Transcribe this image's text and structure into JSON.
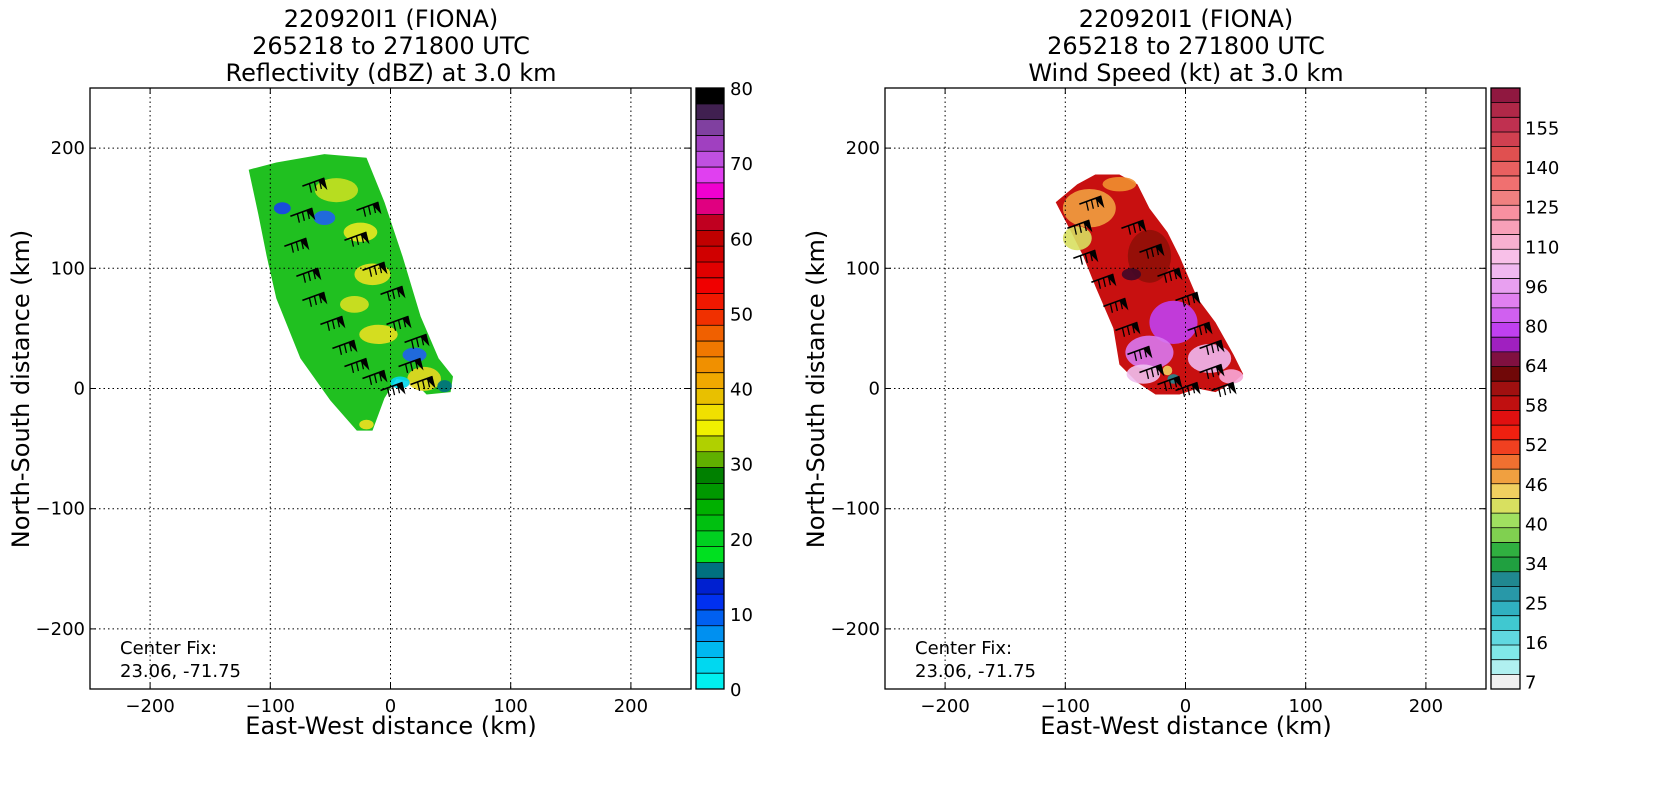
{
  "chart_data": [
    {
      "type": "heatmap",
      "title_lines": [
        "220920I1 (FIONA)",
        "265218 to 271800 UTC",
        "Reflectivity (dBZ) at 3.0 km"
      ],
      "xlabel": "East-West distance (km)",
      "ylabel": "North-South distance (km)",
      "xlim": [
        -250,
        250
      ],
      "ylim": [
        -250,
        250
      ],
      "xticks": [
        -200,
        -100,
        0,
        100,
        200
      ],
      "yticks": [
        -200,
        -100,
        0,
        100,
        200
      ],
      "grid": true,
      "annotation_lines": [
        "Center Fix:",
        "23.06, -71.75"
      ],
      "colorbar": {
        "min": 0,
        "max": 80,
        "tick_labels": [
          "0",
          "10",
          "20",
          "30",
          "40",
          "50",
          "60",
          "70",
          "80"
        ],
        "colors": [
          "#00f0f0",
          "#00d8f0",
          "#00b8f0",
          "#0090f0",
          "#0060f0",
          "#0030f0",
          "#0020d0",
          "#007080",
          "#00e020",
          "#00d020",
          "#00c010",
          "#00b000",
          "#009800",
          "#008000",
          "#60b000",
          "#b0d000",
          "#f0f000",
          "#f0e000",
          "#e8c000",
          "#f0a800",
          "#f09000",
          "#f07800",
          "#f06000",
          "#f03000",
          "#f01800",
          "#f00000",
          "#e00000",
          "#d00000",
          "#c00000",
          "#c00020",
          "#e00080",
          "#f000d0",
          "#e040f0",
          "#c050e0",
          "#a040c0",
          "#8040a0",
          "#402050",
          "#000000"
        ]
      },
      "storm_field": {
        "polygon_km": [
          [
            -118,
            182
          ],
          [
            -95,
            188
          ],
          [
            -55,
            195
          ],
          [
            -20,
            192
          ],
          [
            -5,
            155
          ],
          [
            10,
            110
          ],
          [
            25,
            60
          ],
          [
            40,
            25
          ],
          [
            52,
            10
          ],
          [
            50,
            -3
          ],
          [
            30,
            -5
          ],
          [
            20,
            5
          ],
          [
            5,
            8
          ],
          [
            -5,
            -8
          ],
          [
            -15,
            -35
          ],
          [
            -28,
            -35
          ],
          [
            -50,
            -10
          ],
          [
            -75,
            25
          ],
          [
            -95,
            75
          ],
          [
            -103,
            110
          ],
          [
            -110,
            145
          ]
        ],
        "base_color": "#20c020",
        "patches": [
          {
            "cx": -45,
            "cy": 165,
            "rx": 18,
            "ry": 10,
            "color": "#c8e020"
          },
          {
            "cx": -25,
            "cy": 130,
            "rx": 14,
            "ry": 8,
            "color": "#e8e820"
          },
          {
            "cx": -55,
            "cy": 142,
            "rx": 9,
            "ry": 6,
            "color": "#2060f0"
          },
          {
            "cx": -15,
            "cy": 95,
            "rx": 15,
            "ry": 9,
            "color": "#e8e020"
          },
          {
            "cx": -30,
            "cy": 70,
            "rx": 12,
            "ry": 7,
            "color": "#d8e020"
          },
          {
            "cx": -10,
            "cy": 45,
            "rx": 16,
            "ry": 8,
            "color": "#e8e020"
          },
          {
            "cx": 20,
            "cy": 28,
            "rx": 10,
            "ry": 6,
            "color": "#2060f0"
          },
          {
            "cx": 28,
            "cy": 8,
            "rx": 14,
            "ry": 10,
            "color": "#e8d820"
          },
          {
            "cx": 8,
            "cy": 5,
            "rx": 8,
            "ry": 5,
            "color": "#00d8f0"
          },
          {
            "cx": 45,
            "cy": 2,
            "rx": 6,
            "ry": 5,
            "color": "#007080"
          },
          {
            "cx": -20,
            "cy": -30,
            "rx": 6,
            "ry": 4,
            "color": "#f0e020"
          },
          {
            "cx": -90,
            "cy": 150,
            "rx": 7,
            "ry": 5,
            "color": "#1840f0"
          }
        ]
      }
    },
    {
      "type": "heatmap",
      "title_lines": [
        "220920I1 (FIONA)",
        "265218 to 271800 UTC",
        "Wind Speed (kt) at 3.0 km"
      ],
      "xlabel": "East-West distance (km)",
      "ylabel": "North-South distance (km)",
      "xlim": [
        -250,
        250
      ],
      "ylim": [
        -250,
        250
      ],
      "xticks": [
        -200,
        -100,
        0,
        100,
        200
      ],
      "yticks": [
        -200,
        -100,
        0,
        100,
        200
      ],
      "grid": true,
      "annotation_lines": [
        "Center Fix:",
        "23.06, -71.75"
      ],
      "colorbar": {
        "tick_labels": [
          "7",
          "16",
          "25",
          "34",
          "40",
          "46",
          "52",
          "58",
          "64",
          "80",
          "96",
          "110",
          "125",
          "140",
          "155"
        ],
        "colors": [
          "#f0f0f0",
          "#b0f0f0",
          "#80e8e8",
          "#60d8e0",
          "#40c8d0",
          "#30b0c0",
          "#2898a8",
          "#208890",
          "#20a040",
          "#30b040",
          "#80d050",
          "#a0e060",
          "#d8e060",
          "#f0d060",
          "#f0a040",
          "#f07030",
          "#f04020",
          "#f02010",
          "#e01010",
          "#c01010",
          "#a01010",
          "#700808",
          "#801040",
          "#a020c0",
          "#c040f0",
          "#d060f0",
          "#e080f0",
          "#e8a0f0",
          "#f0b8f0",
          "#f8c0e8",
          "#f8b0d0",
          "#f8a0b8",
          "#f890a0",
          "#f08080",
          "#f07070",
          "#e86060",
          "#e05050",
          "#d04050",
          "#c03050",
          "#b02848",
          "#901840"
        ]
      },
      "storm_field": {
        "polygon_km": [
          [
            -108,
            155
          ],
          [
            -90,
            170
          ],
          [
            -75,
            178
          ],
          [
            -55,
            178
          ],
          [
            -40,
            170
          ],
          [
            -30,
            150
          ],
          [
            -15,
            130
          ],
          [
            -5,
            110
          ],
          [
            10,
            75
          ],
          [
            25,
            55
          ],
          [
            40,
            28
          ],
          [
            48,
            12
          ],
          [
            40,
            5
          ],
          [
            25,
            -3
          ],
          [
            10,
            0
          ],
          [
            -5,
            -5
          ],
          [
            -25,
            -5
          ],
          [
            -40,
            5
          ],
          [
            -55,
            20
          ],
          [
            -60,
            50
          ],
          [
            -75,
            85
          ],
          [
            -85,
            110
          ],
          [
            -95,
            130
          ]
        ],
        "base_color": "#c81010",
        "patches": [
          {
            "cx": -80,
            "cy": 150,
            "rx": 22,
            "ry": 16,
            "color": "#f0a040"
          },
          {
            "cx": -90,
            "cy": 125,
            "rx": 12,
            "ry": 10,
            "color": "#d8e060"
          },
          {
            "cx": -55,
            "cy": 170,
            "rx": 14,
            "ry": 6,
            "color": "#f09030"
          },
          {
            "cx": -30,
            "cy": 110,
            "rx": 18,
            "ry": 22,
            "color": "#901008"
          },
          {
            "cx": -45,
            "cy": 95,
            "rx": 8,
            "ry": 5,
            "color": "#400828"
          },
          {
            "cx": -10,
            "cy": 55,
            "rx": 20,
            "ry": 18,
            "color": "#c040f0"
          },
          {
            "cx": -30,
            "cy": 30,
            "rx": 20,
            "ry": 14,
            "color": "#d878f0"
          },
          {
            "cx": 20,
            "cy": 25,
            "rx": 18,
            "ry": 12,
            "color": "#f0b8f0"
          },
          {
            "cx": -35,
            "cy": 12,
            "rx": 14,
            "ry": 8,
            "color": "#f0c0f0"
          },
          {
            "cx": 38,
            "cy": 10,
            "rx": 10,
            "ry": 6,
            "color": "#f8a8d8"
          },
          {
            "cx": -10,
            "cy": 8,
            "rx": 5,
            "ry": 4,
            "color": "#208890"
          },
          {
            "cx": -15,
            "cy": 15,
            "rx": 4,
            "ry": 4,
            "color": "#f0d060"
          }
        ]
      }
    }
  ]
}
